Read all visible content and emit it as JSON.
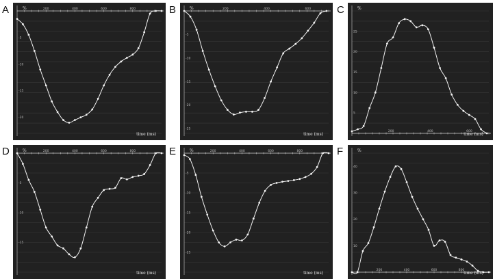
{
  "colors": {
    "panel_bg": "#212121",
    "grid": "#3b3b3b",
    "curve": "#f2f2f2",
    "axis": "#cfcfcf"
  },
  "chart_data": [
    {
      "panel": "A",
      "type": "line",
      "unit": "%",
      "xlabel": "time (ms)",
      "xlim": [
        0,
        1000
      ],
      "ylim": [
        -23,
        0
      ],
      "x_ticks": [
        200,
        400,
        600,
        800
      ],
      "y_ticks": [
        -5,
        -10,
        -15,
        -20
      ],
      "x": [
        0,
        40,
        80,
        120,
        160,
        200,
        240,
        280,
        320,
        360,
        400,
        440,
        480,
        520,
        560,
        600,
        640,
        680,
        720,
        760,
        800,
        840,
        880,
        920,
        960,
        1000
      ],
      "values": [
        -1.5,
        -2.5,
        -4.5,
        -7.5,
        -11,
        -14,
        -17,
        -19,
        -20.5,
        -21,
        -20.5,
        -20,
        -19.5,
        -18.5,
        -16.5,
        -14,
        -12,
        -10.5,
        -9.5,
        -8.8,
        -8.2,
        -7,
        -4,
        -0.5,
        0,
        0
      ]
    },
    {
      "panel": "B",
      "type": "line",
      "unit": "%",
      "xlabel": "time (ms)",
      "xlim": [
        0,
        700
      ],
      "ylim": [
        -26,
        0
      ],
      "x_ticks": [
        200,
        400,
        600
      ],
      "y_ticks": [
        -5,
        -10,
        -15,
        -20,
        -25
      ],
      "x": [
        0,
        30,
        60,
        90,
        120,
        150,
        180,
        210,
        240,
        270,
        300,
        330,
        360,
        390,
        420,
        450,
        480,
        510,
        540,
        570,
        600,
        630,
        660,
        690
      ],
      "values": [
        0,
        -1.2,
        -4,
        -8.5,
        -12.5,
        -16,
        -19,
        -21,
        -22,
        -21.6,
        -21.4,
        -21.4,
        -21,
        -18.5,
        -15,
        -12,
        -9,
        -8,
        -7,
        -5.8,
        -4.2,
        -2.5,
        -0.5,
        0
      ]
    },
    {
      "panel": "C",
      "type": "line",
      "unit": "%",
      "xlabel": "time (ms)",
      "xlim": [
        0,
        700
      ],
      "ylim": [
        0,
        30
      ],
      "x_ticks": [
        200,
        400,
        600
      ],
      "y_ticks": [
        5,
        10,
        15,
        20,
        25
      ],
      "x": [
        0,
        30,
        60,
        90,
        120,
        150,
        180,
        210,
        240,
        270,
        300,
        330,
        360,
        390,
        420,
        450,
        480,
        510,
        540,
        570,
        600,
        630,
        660,
        690
      ],
      "values": [
        0.5,
        1,
        1.8,
        6.2,
        10,
        16,
        22,
        23.5,
        27,
        28,
        27.5,
        26,
        26.5,
        25.5,
        21,
        16,
        13.5,
        9.5,
        7,
        5.5,
        4.5,
        3.5,
        1,
        0
      ]
    },
    {
      "panel": "D",
      "type": "line",
      "unit": "%",
      "xlabel": "time (ms)",
      "xlim": [
        0,
        1000
      ],
      "ylim": [
        -20,
        0
      ],
      "x_ticks": [
        200,
        400,
        600,
        800
      ],
      "y_ticks": [
        -5,
        -10,
        -15
      ],
      "x": [
        0,
        40,
        80,
        120,
        160,
        200,
        240,
        280,
        320,
        360,
        400,
        440,
        480,
        520,
        560,
        600,
        640,
        680,
        720,
        760,
        800,
        840,
        880,
        920,
        960,
        1000
      ],
      "values": [
        0,
        -1.8,
        -4.5,
        -6.5,
        -9.5,
        -12.5,
        -14,
        -15.5,
        -16,
        -17,
        -17.5,
        -16,
        -12.5,
        -9,
        -7.5,
        -6.2,
        -6,
        -5.8,
        -4.2,
        -4.4,
        -4,
        -3.8,
        -3.5,
        -2,
        0,
        0
      ]
    },
    {
      "panel": "E",
      "type": "line",
      "unit": "%",
      "xlabel": "time (ms)",
      "xlim": [
        0,
        1000
      ],
      "ylim": [
        -30,
        0
      ],
      "x_ticks": [
        200,
        400,
        600,
        800
      ],
      "y_ticks": [
        -5,
        -10,
        -15,
        -20,
        -25
      ],
      "x": [
        0,
        40,
        80,
        120,
        160,
        200,
        240,
        280,
        320,
        360,
        400,
        440,
        480,
        520,
        560,
        600,
        640,
        680,
        720,
        760,
        800,
        840,
        880,
        920,
        960,
        1000
      ],
      "values": [
        -0.5,
        -1.5,
        -5.5,
        -11,
        -15.5,
        -19.5,
        -22.5,
        -23.5,
        -22.5,
        -21.8,
        -22,
        -20.5,
        -16.5,
        -12.5,
        -9.5,
        -8,
        -7.5,
        -7.2,
        -7,
        -6.8,
        -6.5,
        -6,
        -5.2,
        -3.5,
        0,
        0
      ]
    },
    {
      "panel": "F",
      "type": "line",
      "unit": "%",
      "xlabel": "time (ms)",
      "xlim": [
        0,
        1000
      ],
      "ylim": [
        0,
        45
      ],
      "x_ticks": [
        200,
        400,
        600,
        800
      ],
      "y_ticks": [
        10,
        20,
        30,
        40
      ],
      "x": [
        0,
        40,
        80,
        120,
        160,
        200,
        240,
        280,
        320,
        360,
        400,
        440,
        480,
        520,
        560,
        600,
        640,
        680,
        720,
        760,
        800,
        840,
        880,
        920,
        960,
        1000
      ],
      "values": [
        0,
        0,
        8,
        11,
        17,
        24,
        30.5,
        36,
        40,
        39,
        34,
        28.5,
        24,
        20,
        16,
        10,
        12,
        11.5,
        6.5,
        5.5,
        4.8,
        4,
        2.5,
        0.5,
        0,
        0
      ]
    }
  ],
  "panels": [
    {
      "letter": "A",
      "unit": "%",
      "xlabel": "time (ms)"
    },
    {
      "letter": "B",
      "unit": "%",
      "xlabel": "time (ms)"
    },
    {
      "letter": "C",
      "unit": "%",
      "xlabel": "time (ms)"
    },
    {
      "letter": "D",
      "unit": "%",
      "xlabel": "time (ms)"
    },
    {
      "letter": "E",
      "unit": "%",
      "xlabel": "time (ms)"
    },
    {
      "letter": "F",
      "unit": "%",
      "xlabel": "time (ms)"
    }
  ]
}
